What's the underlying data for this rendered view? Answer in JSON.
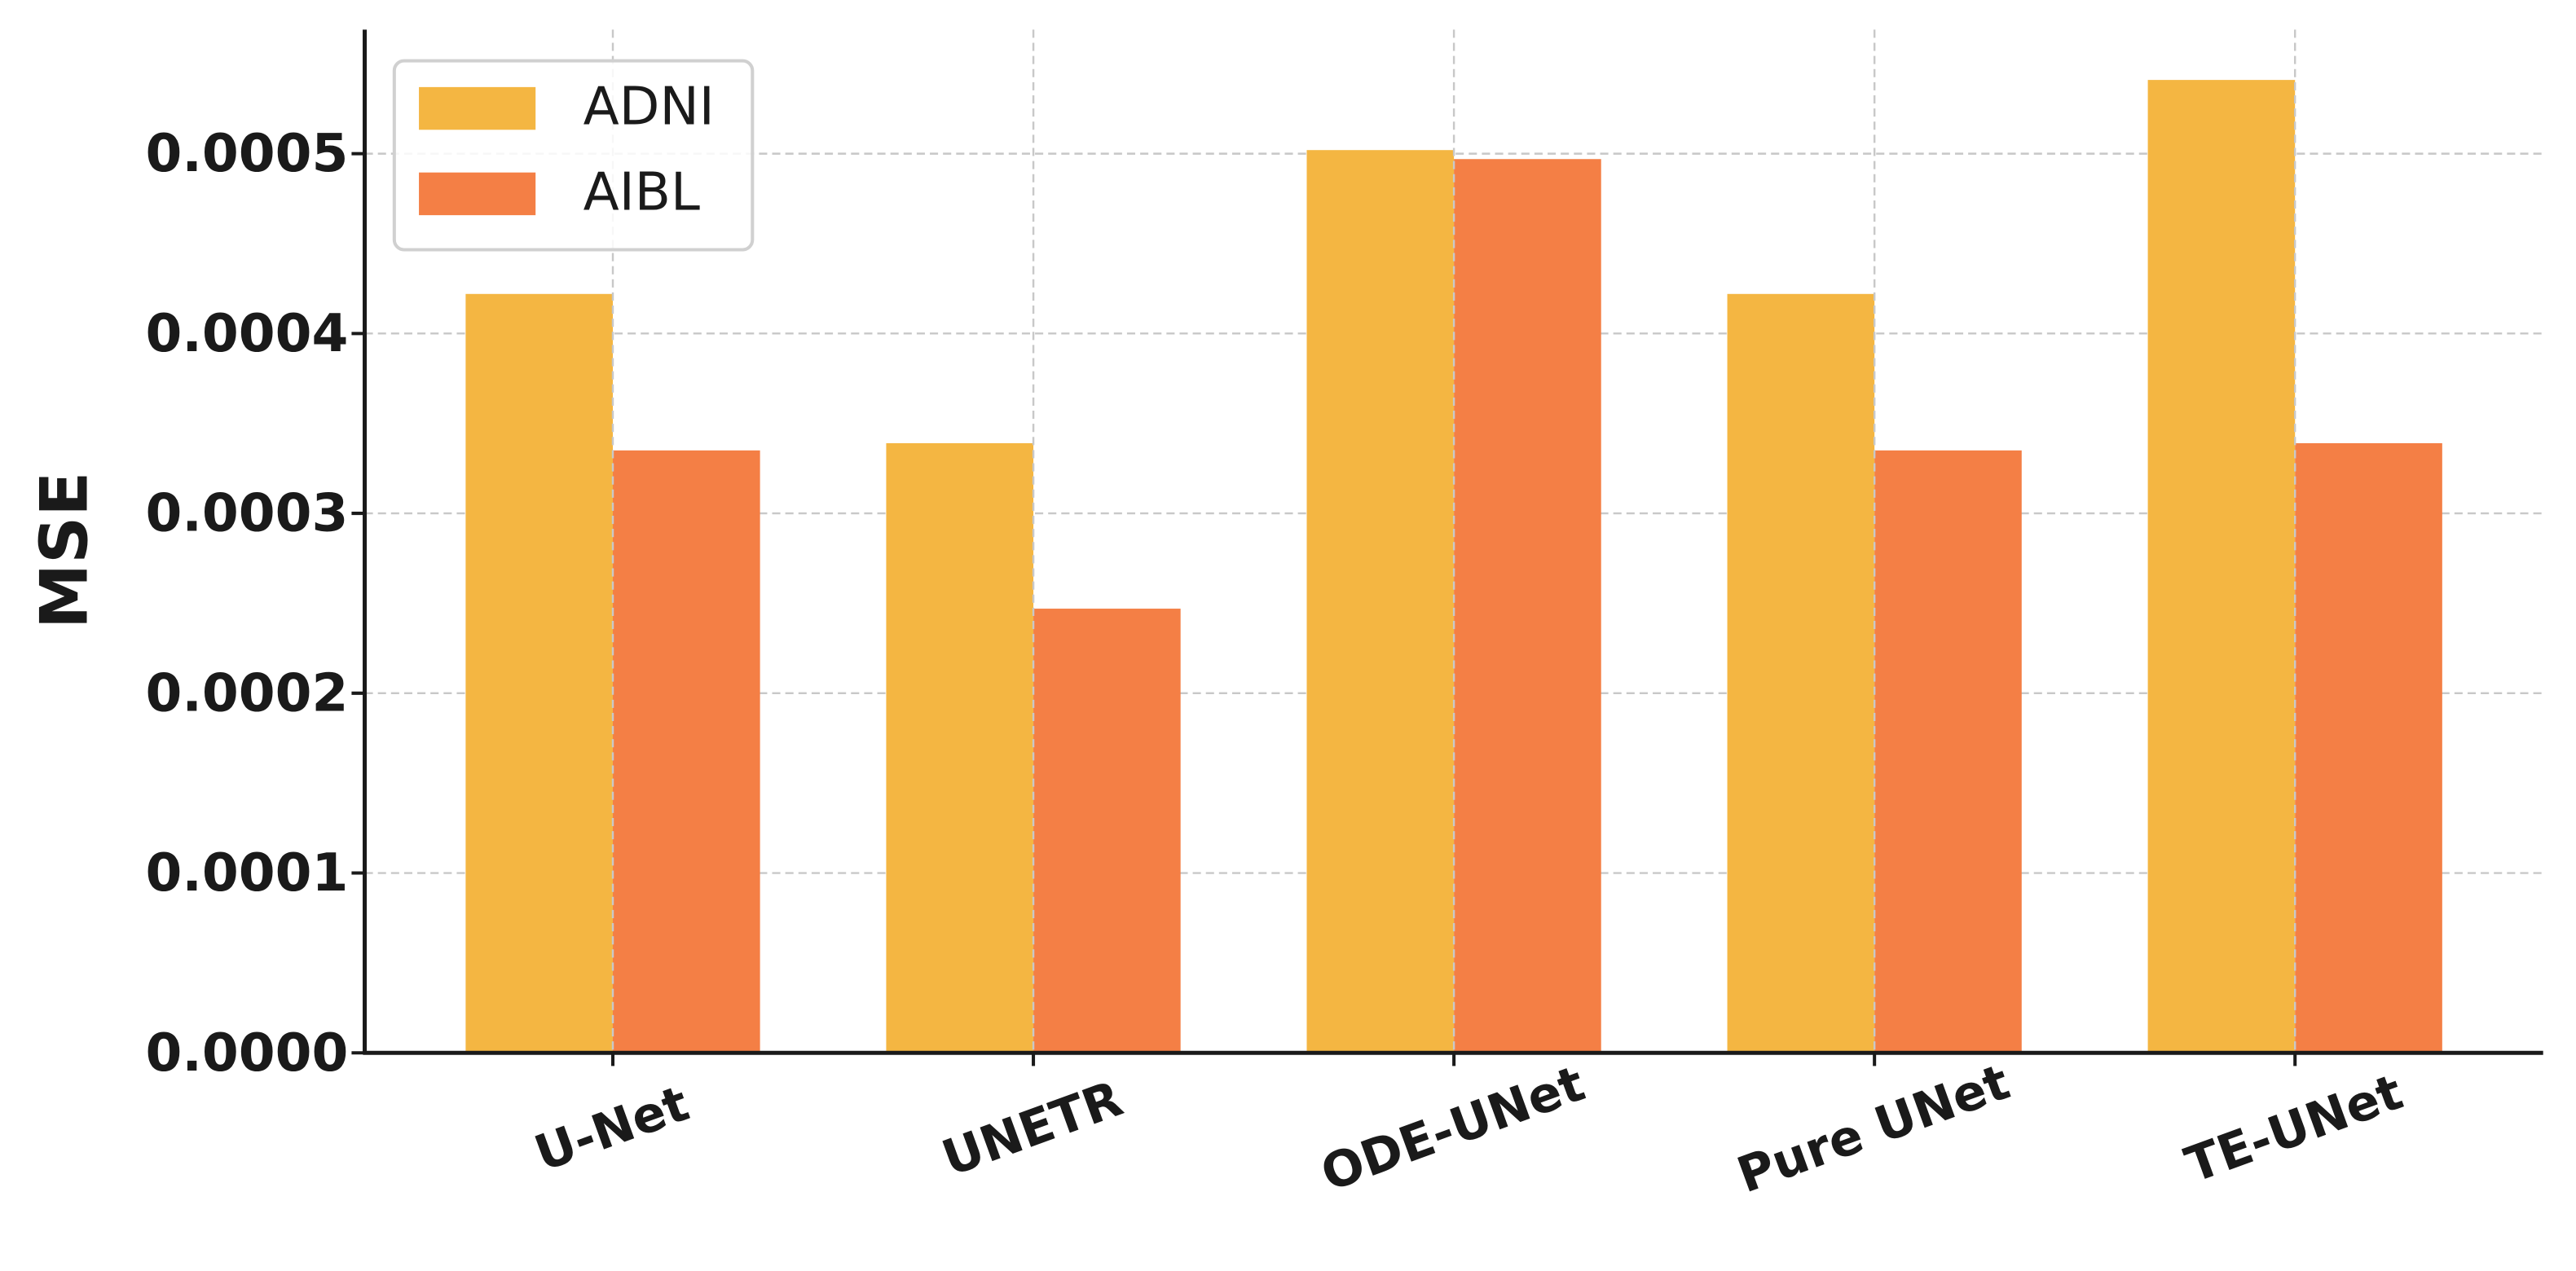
{
  "chart_data": {
    "type": "bar",
    "y_label": "MSE",
    "categories": [
      "U-Net",
      "UNETR",
      "ODE-UNet",
      "Pure UNet",
      "TE-UNet"
    ],
    "series": [
      {
        "name": "ADNI",
        "color": "#f4b642",
        "values": [
          0.000422,
          0.000339,
          0.000502,
          0.000422,
          0.000541
        ]
      },
      {
        "name": "AIBL",
        "color": "#f47f45",
        "values": [
          0.000335,
          0.000247,
          0.000497,
          0.000335,
          0.000339
        ]
      }
    ],
    "ylim": [
      0,
      0.000569
    ],
    "yticks": [
      {
        "value": 0,
        "label": "0.0000"
      },
      {
        "value": 0.0001,
        "label": "0.0001"
      },
      {
        "value": 0.0002,
        "label": "0.0002"
      },
      {
        "value": 0.0003,
        "label": "0.0003"
      },
      {
        "value": 0.0004,
        "label": "0.0004"
      },
      {
        "value": 0.0005,
        "label": "0.0005"
      }
    ],
    "grid": true,
    "legend": "upper left"
  }
}
